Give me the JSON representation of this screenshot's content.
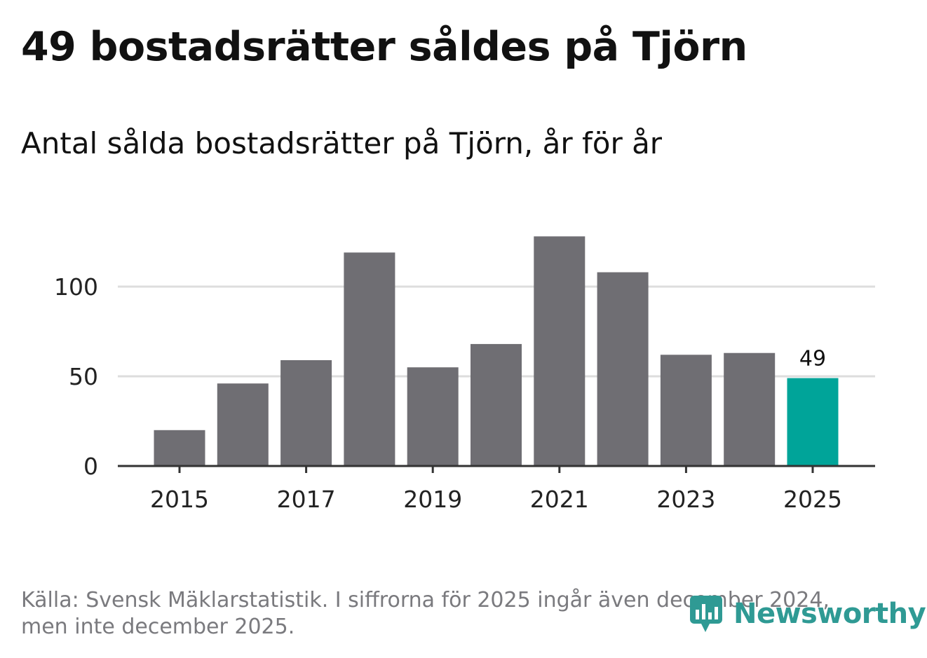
{
  "title": "49 bostadsrätter såldes på Tjörn",
  "subtitle": "Antal sålda bostadsrätter på Tjörn, år för år",
  "source": {
    "line1": "Källa: Svensk Mäklarstatistik. I siffrorna för 2025 ingår även december 2024,",
    "line2": "men inte december 2025."
  },
  "brand": {
    "name": "Newsworthy",
    "color": "#2f9a94"
  },
  "colors": {
    "bar": "#6f6e73",
    "highlight": "#00a499",
    "grid": "#dddddd",
    "axis": "#333333",
    "tick_text": "#222222"
  },
  "chart_data": {
    "type": "bar",
    "title": "49 bostadsrätter såldes på Tjörn",
    "subtitle": "Antal sålda bostadsrätter på Tjörn, år för år",
    "xlabel": "",
    "ylabel": "",
    "categories": [
      "2015",
      "2016",
      "2017",
      "2018",
      "2019",
      "2020",
      "2021",
      "2022",
      "2023",
      "2024",
      "2025"
    ],
    "values": [
      20,
      46,
      59,
      119,
      55,
      68,
      128,
      108,
      62,
      63,
      49
    ],
    "highlight_index": 10,
    "highlight_label": "49",
    "x_tick_labels": [
      "2015",
      "2017",
      "2019",
      "2021",
      "2023",
      "2025"
    ],
    "y_ticks": [
      0,
      50,
      100
    ],
    "y_tick_labels": [
      "0",
      "50",
      "100"
    ],
    "ylim": [
      0,
      135
    ],
    "grid": true
  }
}
